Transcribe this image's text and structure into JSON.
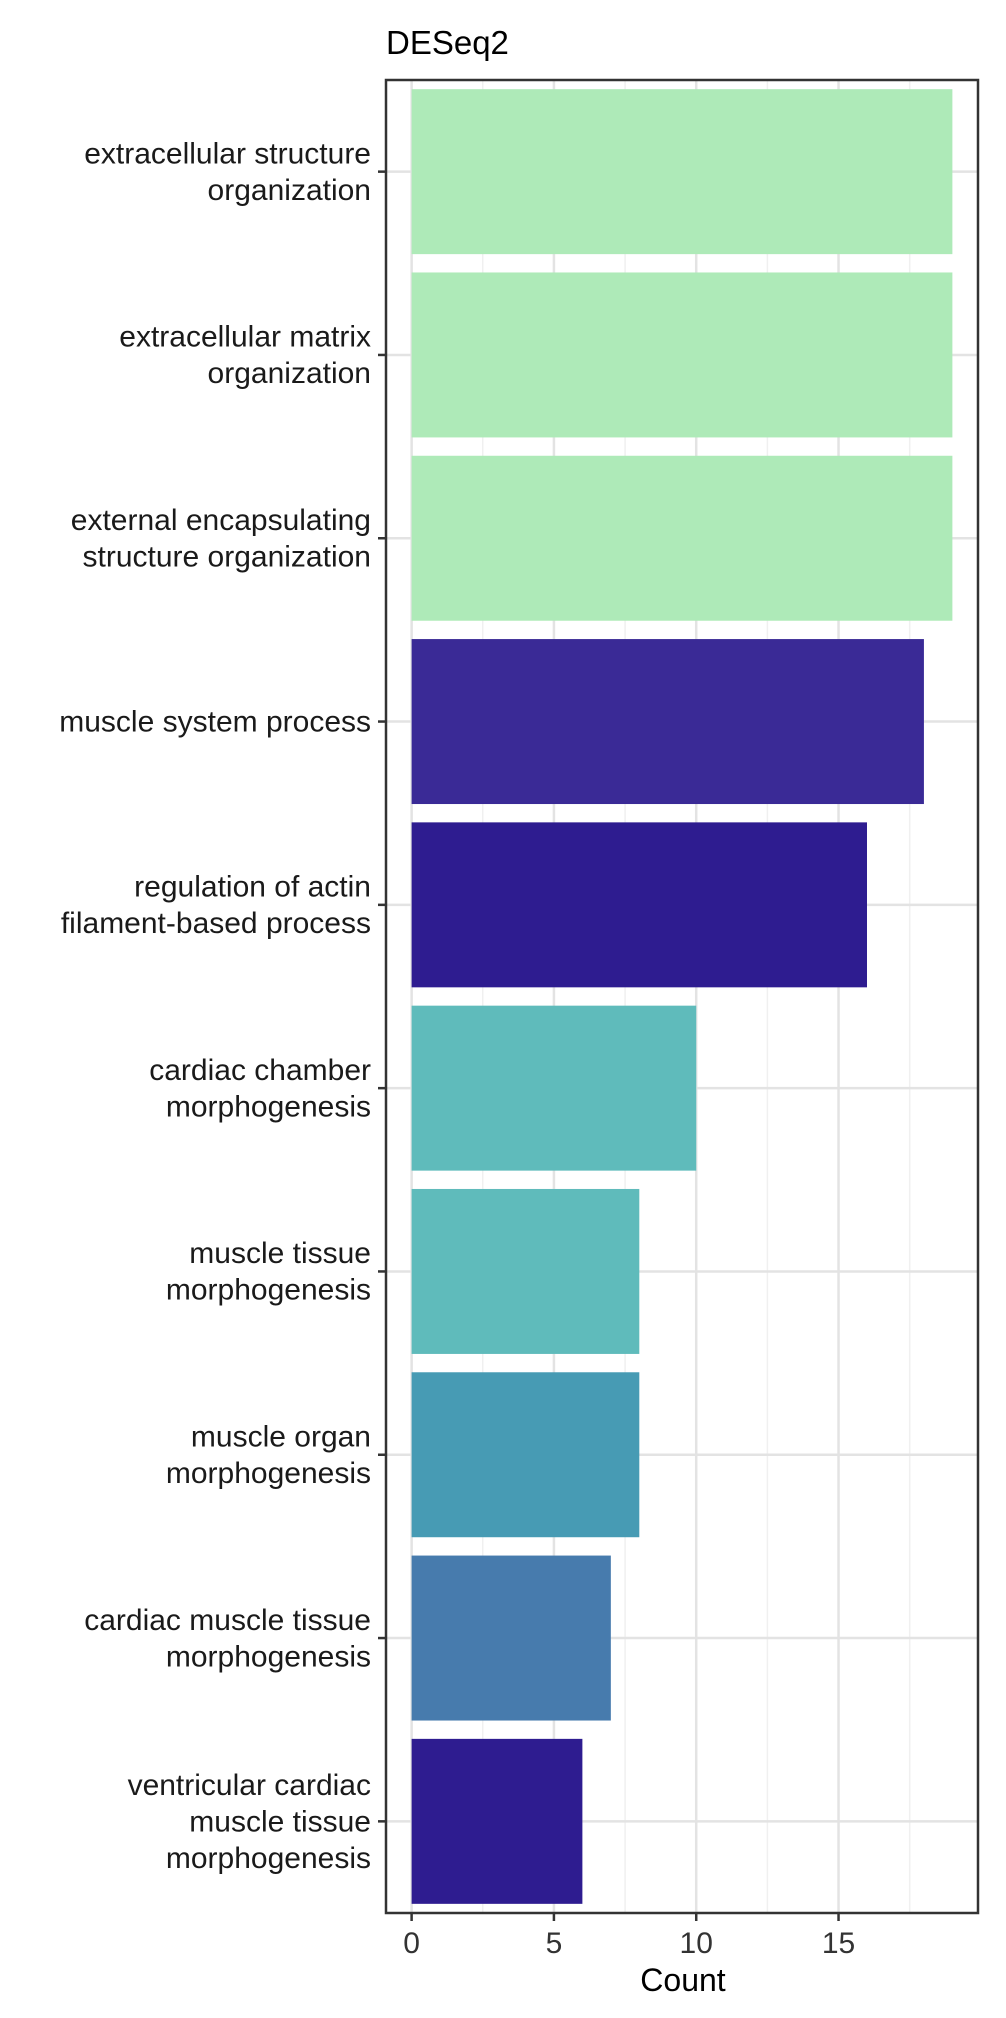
{
  "chart_data": {
    "type": "bar",
    "orientation": "horizontal",
    "title": "DESeq2",
    "xlabel": "Count",
    "ylabel": "",
    "xlim": [
      -0.9,
      19.9
    ],
    "xticks": [
      "0",
      "5",
      "10",
      "15"
    ],
    "grid": true,
    "legend": "none",
    "categories": [
      [
        "extracellular structure",
        "organization"
      ],
      [
        "extracellular matrix",
        "organization"
      ],
      [
        "external encapsulating",
        "structure organization"
      ],
      [
        "muscle system process"
      ],
      [
        "regulation of actin",
        "filament-based process"
      ],
      [
        "cardiac chamber",
        "morphogenesis"
      ],
      [
        "muscle tissue",
        "morphogenesis"
      ],
      [
        "muscle organ",
        "morphogenesis"
      ],
      [
        "cardiac muscle tissue",
        "morphogenesis"
      ],
      [
        "ventricular cardiac",
        "muscle tissue",
        "morphogenesis"
      ]
    ],
    "values": [
      19,
      19,
      19,
      18,
      16,
      10,
      8,
      8,
      7,
      6
    ],
    "colors": [
      "#aeeab8",
      "#aeeab8",
      "#aeeab8",
      "#3a2a96",
      "#2e1c90",
      "#5fbbbb",
      "#5fbbbb",
      "#479bb4",
      "#477bad",
      "#2e1c90"
    ]
  }
}
